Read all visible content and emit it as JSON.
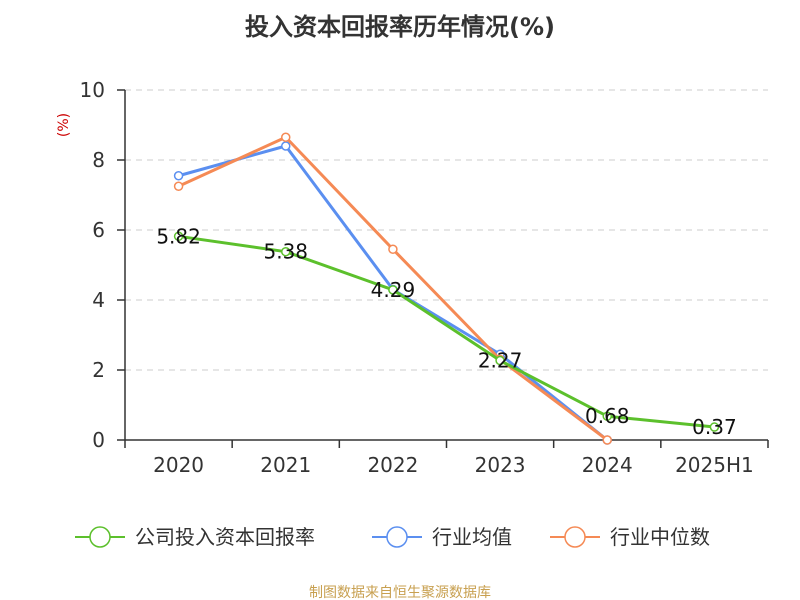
{
  "chart_data": {
    "type": "line",
    "title": "投入资本回报率历年情况(%)",
    "ylabel": "(%)",
    "xlabel": "",
    "categories": [
      "2020",
      "2021",
      "2022",
      "2023",
      "2024",
      "2025H1"
    ],
    "ylim": [
      0,
      10
    ],
    "yticks": [
      0,
      2,
      4,
      6,
      8,
      10
    ],
    "grid": true,
    "legend_position": "bottom",
    "series": [
      {
        "name": "公司投入资本回报率",
        "color": "#5cc02c",
        "values": [
          5.82,
          5.38,
          4.29,
          2.27,
          0.68,
          0.37
        ],
        "labels": [
          "5.82",
          "5.38",
          "4.29",
          "2.27",
          "0.68",
          "0.37"
        ]
      },
      {
        "name": "行业均值",
        "color": "#5b8ff0",
        "values": [
          7.55,
          8.4,
          4.3,
          2.45,
          0.0,
          null
        ]
      },
      {
        "name": "行业中位数",
        "color": "#f58a55",
        "values": [
          7.25,
          8.65,
          5.45,
          2.3,
          0.0,
          null
        ]
      }
    ]
  },
  "source": "制图数据来自恒生聚源数据库",
  "colors": {
    "source": "#c8a050",
    "ylabel": "#cc0000",
    "axis": "#333333",
    "grid": "#cccccc"
  }
}
